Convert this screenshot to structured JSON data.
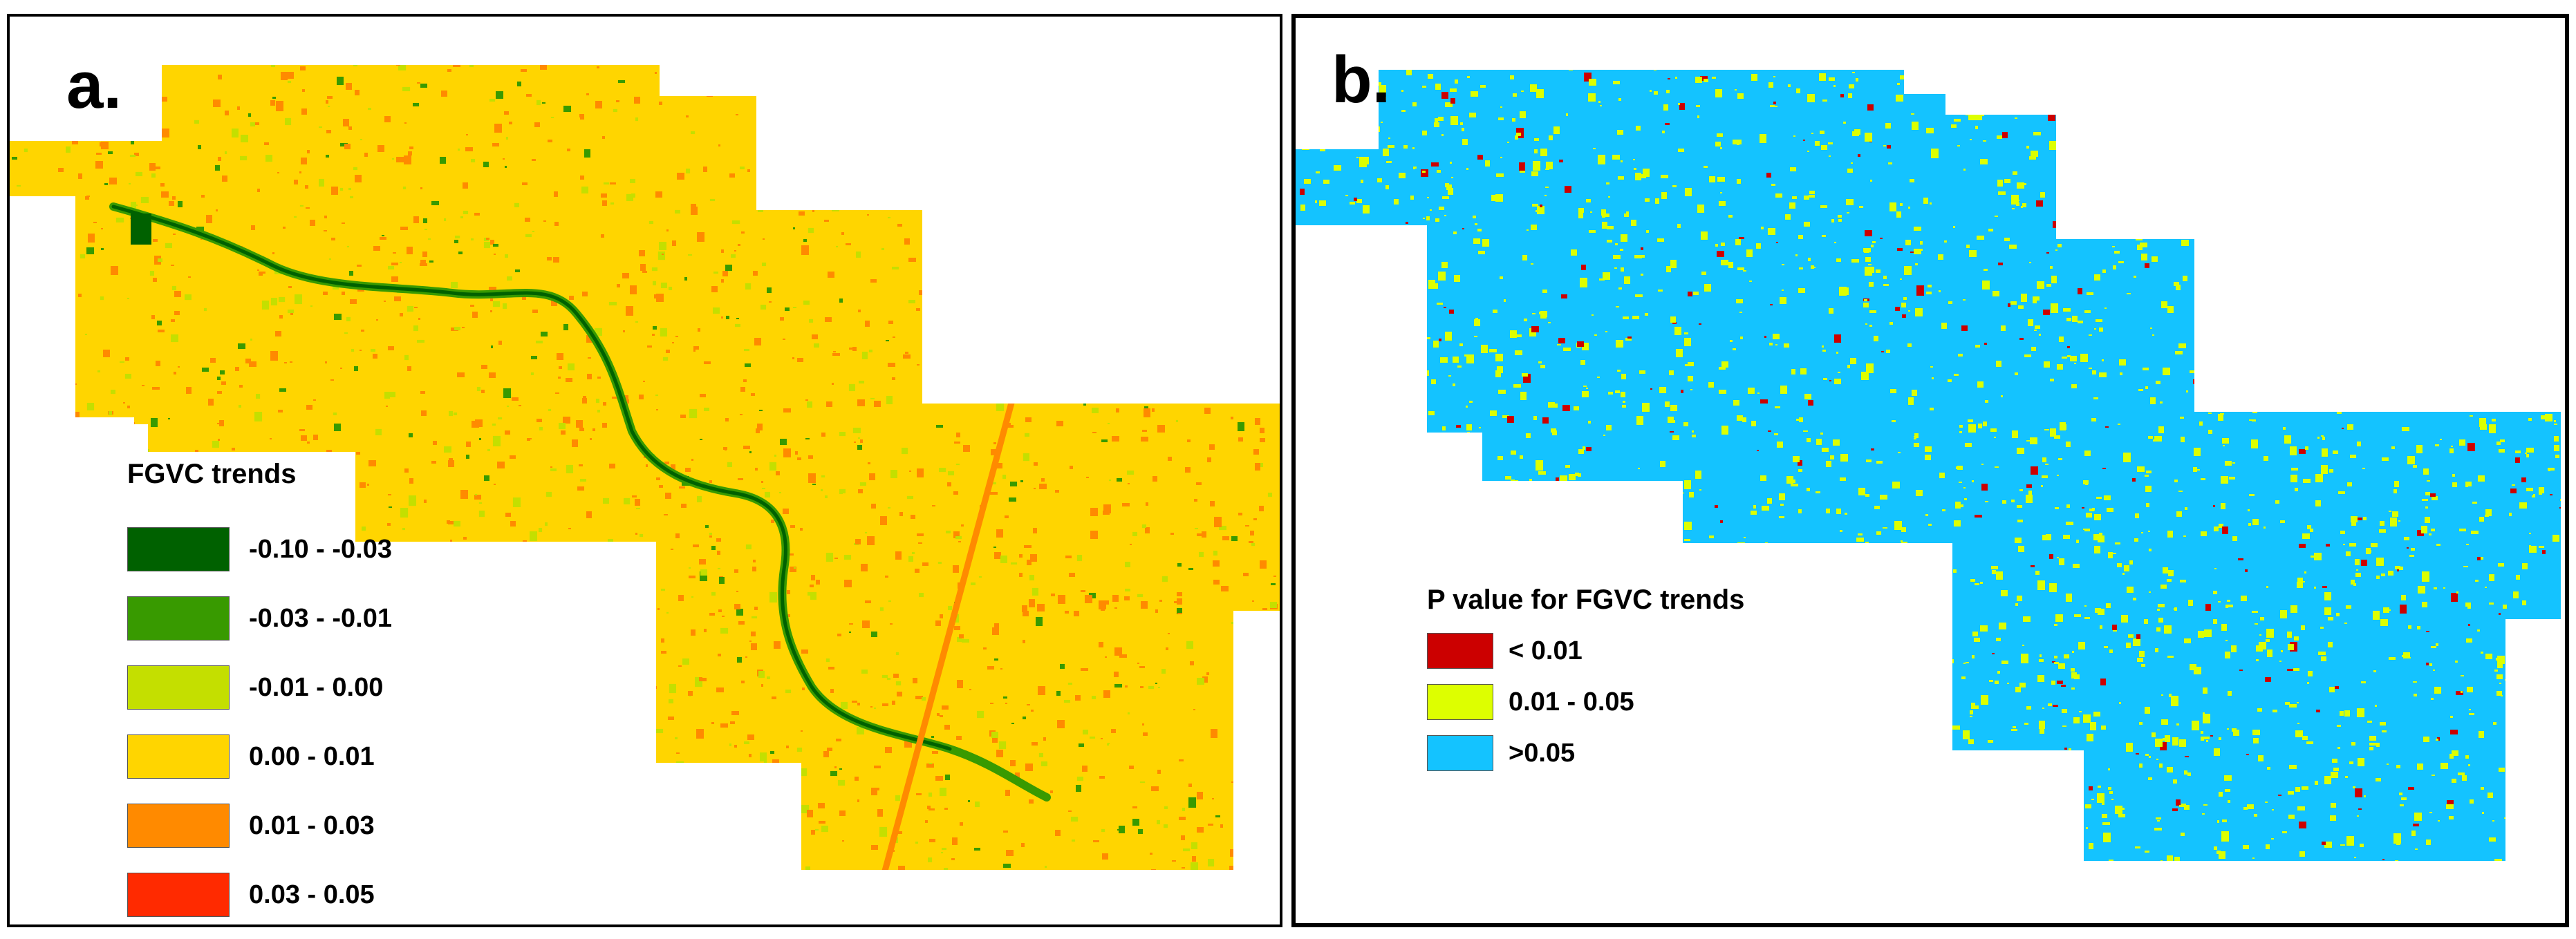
{
  "panels": [
    {
      "label": "a.",
      "legend": {
        "title": "FGVC trends",
        "classes": [
          {
            "label": "-0.10 - -0.03",
            "color": "#006100"
          },
          {
            "label": "-0.03 - -0.01",
            "color": "#389a00"
          },
          {
            "label": "-0.01 - 0.00",
            "color": "#c4df00"
          },
          {
            "label": "0.00 - 0.01",
            "color": "#ffd500"
          },
          {
            "label": "0.01 - 0.03",
            "color": "#ff8a00"
          },
          {
            "label": "0.03 - 0.05",
            "color": "#ff2a00"
          }
        ]
      }
    },
    {
      "label": "b.",
      "legend": {
        "title": "P value for FGVC trends",
        "classes": [
          {
            "label": "< 0.01",
            "color": "#cc0000"
          },
          {
            "label": "0.01 - 0.05",
            "color": "#ddff00"
          },
          {
            "label": ">0.05",
            "color": "#14c3ff"
          }
        ]
      }
    }
  ]
}
